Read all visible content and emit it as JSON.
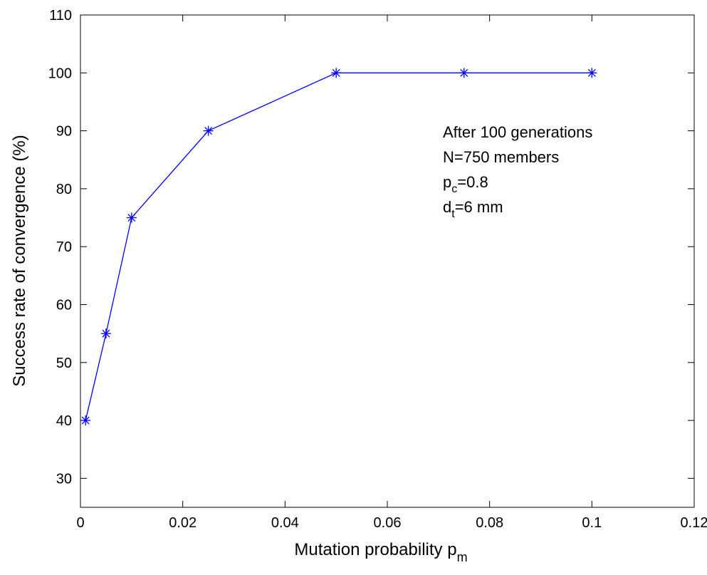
{
  "chart_data": {
    "type": "line",
    "x": [
      0.001,
      0.005,
      0.01,
      0.025,
      0.05,
      0.075,
      0.1
    ],
    "series": [
      {
        "values": [
          40,
          55,
          75,
          90,
          100,
          100,
          100
        ],
        "color": "#0000ff",
        "marker": "asterisk"
      }
    ],
    "xlim": [
      0,
      0.12
    ],
    "ylim": [
      25,
      110
    ],
    "xticks": [
      0,
      0.02,
      0.04,
      0.06,
      0.08,
      0.1,
      0.12
    ],
    "xtick_labels": [
      "0",
      "0.02",
      "0.04",
      "0.06",
      "0.08",
      "0.1",
      "0.12"
    ],
    "yticks": [
      30,
      40,
      50,
      60,
      70,
      80,
      90,
      100,
      110
    ],
    "ytick_labels": [
      "30",
      "40",
      "50",
      "60",
      "70",
      "80",
      "90",
      "100",
      "110"
    ],
    "xlabel": {
      "text": "Mutation probability p",
      "sub": "m"
    },
    "ylabel": "Success rate of convergence (%)",
    "grid": false,
    "annotations": [
      {
        "text": "After 100 generations",
        "sub": "",
        "rest": ""
      },
      {
        "text": "N=750 members",
        "sub": "",
        "rest": ""
      },
      {
        "text": "p",
        "sub": "c",
        "rest": "=0.8"
      },
      {
        "text": "d",
        "sub": "t",
        "rest": "=6 mm"
      }
    ]
  }
}
